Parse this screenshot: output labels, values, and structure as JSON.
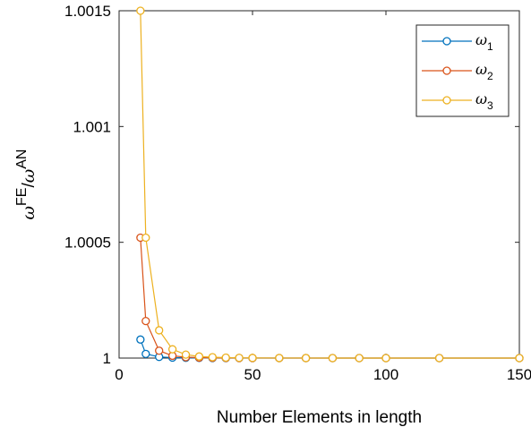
{
  "chart_data": {
    "type": "line",
    "xlabel": "Number Elements in length",
    "ylabel": {
      "omega": "ω",
      "num_sup": "FE",
      "slash": "/",
      "den_sup": "AN"
    },
    "xlim": [
      0,
      150
    ],
    "ylim": [
      1,
      1.0015
    ],
    "xticks": [
      0,
      50,
      100,
      150
    ],
    "xtick_labels": [
      "0",
      "50",
      "100",
      "150"
    ],
    "yticks": [
      1,
      1.0005,
      1.001,
      1.0015
    ],
    "ytick_labels": [
      "1",
      "1.0005",
      "1.001",
      "1.0015"
    ],
    "grid": false,
    "legend_position": "top-right",
    "x": [
      8,
      10,
      15,
      20,
      25,
      30,
      35,
      40,
      45,
      50,
      60,
      70,
      80,
      90,
      100,
      120,
      150
    ],
    "series": [
      {
        "name": "ω1",
        "label_main": "ω",
        "label_sub": "1",
        "color": "#0072BD",
        "values": [
          1.00008,
          1.000018,
          1.000005,
          1.000002,
          1.000001,
          1.0000004,
          1.0000002,
          1.0000001,
          1.0000001,
          1.0,
          1.0,
          1.0,
          1.0,
          1.0,
          1.0,
          1.0,
          1.0
        ]
      },
      {
        "name": "ω2",
        "label_main": "ω",
        "label_sub": "2",
        "color": "#D95319",
        "values": [
          1.00052,
          1.00016,
          1.000032,
          1.00001,
          1.000004,
          1.000002,
          1.000001,
          1.0000005,
          1.0000003,
          1.0000002,
          1.0000001,
          1.0,
          1.0,
          1.0,
          1.0,
          1.0,
          1.0
        ]
      },
      {
        "name": "ω3",
        "label_main": "ω",
        "label_sub": "3",
        "color": "#EDB120",
        "values": [
          1.0015,
          1.00052,
          1.00012,
          1.000038,
          1.000015,
          1.000007,
          1.000004,
          1.000002,
          1.000001,
          1.0000007,
          1.0000003,
          1.0000002,
          1.0000001,
          1.0,
          1.0,
          1.0,
          1.0
        ]
      }
    ]
  }
}
